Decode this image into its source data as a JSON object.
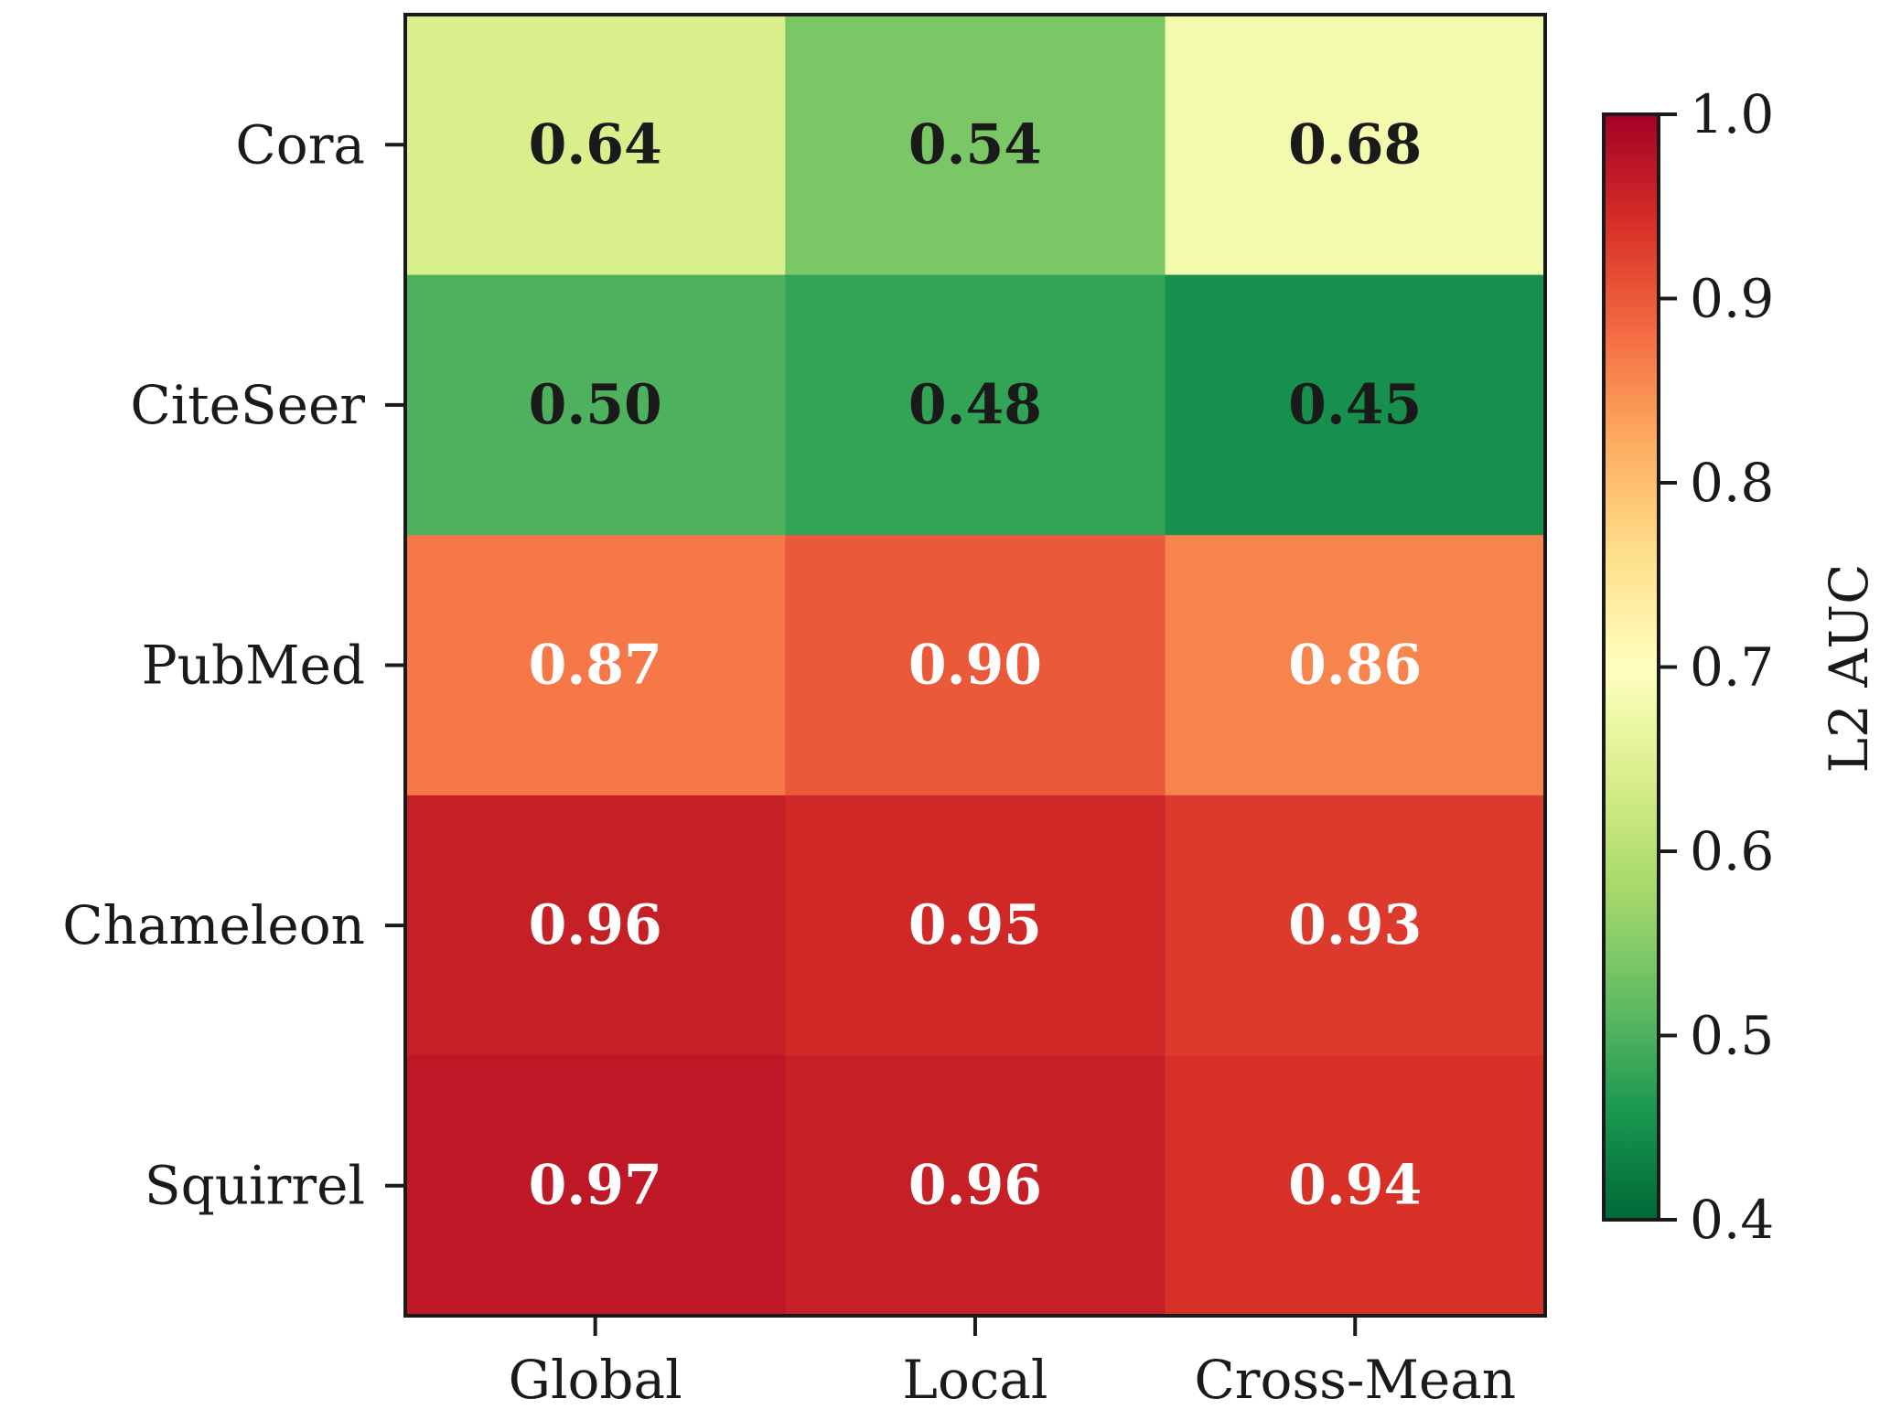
{
  "chart_data": {
    "type": "heatmap",
    "rows": [
      "Cora",
      "CiteSeer",
      "PubMed",
      "Chameleon",
      "Squirrel"
    ],
    "columns": [
      "Global",
      "Local",
      "Cross-Mean"
    ],
    "values": [
      [
        0.64,
        0.54,
        0.68
      ],
      [
        0.5,
        0.48,
        0.45
      ],
      [
        0.87,
        0.9,
        0.86
      ],
      [
        0.96,
        0.95,
        0.93
      ],
      [
        0.97,
        0.96,
        0.94
      ]
    ],
    "cell_labels": [
      [
        "0.64",
        "0.54",
        "0.68"
      ],
      [
        "0.50",
        "0.48",
        "0.45"
      ],
      [
        "0.87",
        "0.90",
        "0.86"
      ],
      [
        "0.96",
        "0.95",
        "0.93"
      ],
      [
        "0.97",
        "0.96",
        "0.94"
      ]
    ],
    "colormap": "RdYlGn_r",
    "vmin": 0.4,
    "vmax": 1.0,
    "colorbar": {
      "label": "L2 AUC",
      "ticks": [
        0.4,
        0.5,
        0.6,
        0.7,
        0.8,
        0.9,
        1.0
      ],
      "tick_labels": [
        "0.4",
        "0.5",
        "0.6",
        "0.7",
        "0.8",
        "0.9",
        "1.0"
      ]
    },
    "dark_text_color": "#1a1a1a",
    "light_text_color": "#ffffff",
    "title": "",
    "xlabel": "",
    "ylabel": ""
  }
}
